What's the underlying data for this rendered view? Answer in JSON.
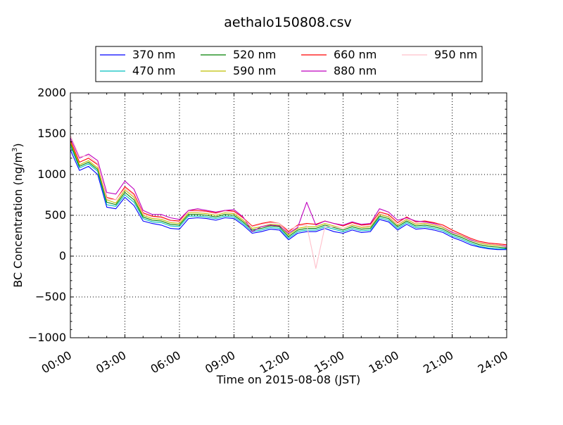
{
  "chart_data": {
    "type": "line",
    "title": "aethalo150808.csv",
    "xlabel": "Time on 2015-08-08 (JST)",
    "ylabel_main": "BC Concentration (ng/m",
    "ylabel_sup": "3",
    "ylabel_close": ")",
    "xlim": [
      "00:00",
      "24:00"
    ],
    "ylim": [
      -1000,
      2000
    ],
    "grid": true,
    "legend_position": "top",
    "x_ticks": [
      "00:00",
      "03:00",
      "06:00",
      "09:00",
      "12:00",
      "15:00",
      "18:00",
      "21:00",
      "24:00"
    ],
    "y_ticks": [
      "2000",
      "1500",
      "1000",
      "500",
      "0",
      "−500",
      "−1000"
    ],
    "x_hours": [
      0,
      0.5,
      1,
      1.5,
      2,
      2.5,
      3,
      3.5,
      4,
      4.5,
      5,
      5.5,
      6,
      6.5,
      7,
      7.5,
      8,
      8.5,
      9,
      9.5,
      10,
      10.5,
      11,
      11.5,
      12,
      12.5,
      13,
      13.5,
      14,
      14.5,
      15,
      15.5,
      16,
      16.5,
      17,
      17.5,
      18,
      18.5,
      19,
      19.5,
      20,
      20.5,
      21,
      21.5,
      22,
      22.5,
      23,
      23.5,
      24
    ],
    "series": [
      {
        "name": "370 nm",
        "color": "#0000ff",
        "values": [
          1300,
          1050,
          1100,
          1000,
          600,
          580,
          720,
          620,
          430,
          400,
          380,
          340,
          330,
          460,
          470,
          460,
          440,
          470,
          460,
          380,
          280,
          300,
          330,
          320,
          200,
          280,
          300,
          300,
          340,
          300,
          280,
          320,
          290,
          300,
          450,
          420,
          320,
          390,
          330,
          340,
          320,
          290,
          230,
          190,
          140,
          110,
          90,
          80,
          80
        ]
      },
      {
        "name": "470 nm",
        "color": "#00bfbf",
        "values": [
          1350,
          1080,
          1130,
          1040,
          630,
          610,
          750,
          660,
          460,
          420,
          410,
          370,
          360,
          490,
          490,
          480,
          460,
          490,
          480,
          400,
          300,
          320,
          350,
          340,
          220,
          300,
          320,
          320,
          360,
          330,
          300,
          340,
          310,
          320,
          470,
          440,
          340,
          410,
          350,
          360,
          340,
          310,
          250,
          210,
          160,
          120,
          100,
          90,
          90
        ]
      },
      {
        "name": "520 nm",
        "color": "#008000",
        "values": [
          1380,
          1100,
          1150,
          1060,
          660,
          630,
          780,
          690,
          480,
          440,
          430,
          390,
          380,
          510,
          510,
          500,
          480,
          510,
          500,
          420,
          320,
          340,
          370,
          360,
          240,
          320,
          340,
          340,
          380,
          350,
          320,
          360,
          330,
          340,
          490,
          460,
          360,
          430,
          370,
          380,
          360,
          330,
          270,
          230,
          180,
          140,
          120,
          110,
          100
        ]
      },
      {
        "name": "590 nm",
        "color": "#bfbf00",
        "values": [
          1400,
          1120,
          1170,
          1080,
          690,
          650,
          810,
          720,
          500,
          460,
          450,
          410,
          400,
          530,
          530,
          520,
          500,
          530,
          520,
          440,
          340,
          360,
          390,
          380,
          260,
          340,
          360,
          360,
          400,
          370,
          340,
          380,
          350,
          360,
          510,
          480,
          380,
          450,
          390,
          400,
          380,
          350,
          290,
          250,
          200,
          160,
          140,
          130,
          120
        ]
      },
      {
        "name": "660 nm",
        "color": "#ff0000",
        "values": [
          1420,
          1150,
          1200,
          1120,
          720,
          690,
          850,
          760,
          530,
          490,
          480,
          440,
          430,
          560,
          560,
          550,
          530,
          560,
          550,
          470,
          370,
          400,
          420,
          400,
          300,
          380,
          400,
          390,
          430,
          400,
          370,
          410,
          380,
          390,
          540,
          510,
          410,
          480,
          420,
          430,
          410,
          380,
          320,
          270,
          220,
          180,
          160,
          150,
          140
        ]
      },
      {
        "name": "880 nm",
        "color": "#bf00bf",
        "values": [
          1450,
          1200,
          1250,
          1170,
          780,
          760,
          920,
          820,
          560,
          510,
          510,
          470,
          450,
          560,
          580,
          560,
          540,
          560,
          570,
          480,
          300,
          360,
          380,
          370,
          280,
          350,
          660,
          380,
          430,
          400,
          380,
          420,
          390,
          400,
          580,
          540,
          440,
          470,
          430,
          420,
          400,
          360,
          290,
          260,
          200,
          170,
          150,
          140,
          120
        ]
      },
      {
        "name": "950 nm",
        "color": "#ffc0cb",
        "values": [
          1480,
          1220,
          1230,
          1130,
          700,
          690,
          830,
          740,
          520,
          480,
          470,
          430,
          420,
          550,
          550,
          540,
          520,
          550,
          540,
          460,
          360,
          390,
          410,
          400,
          320,
          370,
          380,
          -150,
          360,
          360,
          340,
          390,
          360,
          370,
          520,
          490,
          390,
          460,
          400,
          410,
          390,
          360,
          300,
          260,
          210,
          170,
          150,
          140,
          130
        ]
      }
    ]
  }
}
